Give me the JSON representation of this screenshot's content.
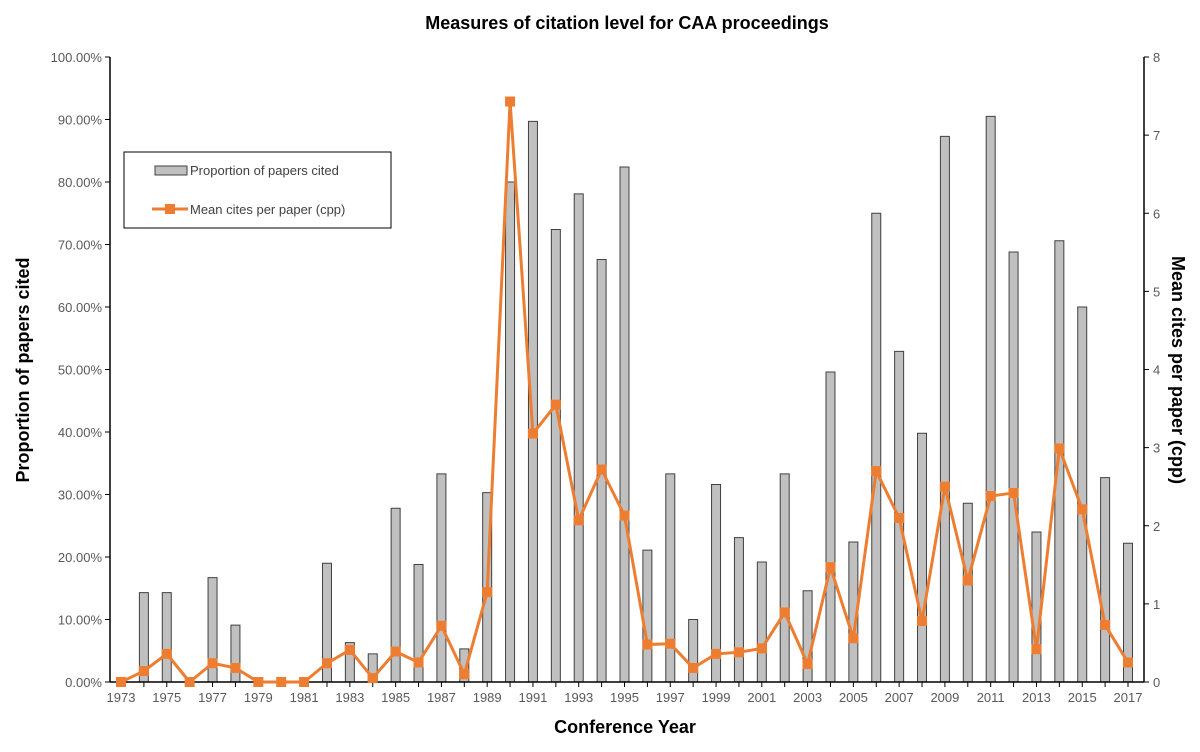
{
  "chart_data": {
    "type": "bar+line",
    "title": "Measures of citation level for CAA proceedings",
    "xlabel": "Conference Year",
    "ylabel": "Proportion of papers cited",
    "y2label": "Mean cites per paper (cpp)",
    "ylim": [
      0,
      100
    ],
    "y2lim": [
      0,
      8
    ],
    "yticks": [
      "0.00%",
      "10.00%",
      "20.00%",
      "30.00%",
      "40.00%",
      "50.00%",
      "60.00%",
      "70.00%",
      "80.00%",
      "90.00%",
      "100.00%"
    ],
    "y2ticks": [
      "0",
      "1",
      "2",
      "3",
      "4",
      "5",
      "6",
      "7",
      "8"
    ],
    "grid": false,
    "legend_position": "top-left",
    "categories": [
      1973,
      1974,
      1975,
      1976,
      1977,
      1978,
      1979,
      1980,
      1981,
      1982,
      1983,
      1984,
      1985,
      1986,
      1987,
      1988,
      1989,
      1990,
      1991,
      1992,
      1993,
      1994,
      1995,
      1996,
      1997,
      1998,
      1999,
      2000,
      2001,
      2002,
      2003,
      2004,
      2005,
      2006,
      2007,
      2008,
      2009,
      2010,
      2011,
      2012,
      2013,
      2014,
      2015,
      2016,
      2017
    ],
    "series": [
      {
        "name": "Proportion of papers cited",
        "type": "bar",
        "axis": "left",
        "color": "#c0c0c0",
        "values": [
          0,
          14.3,
          14.3,
          0,
          16.7,
          9.1,
          0,
          0,
          0,
          19.0,
          6.3,
          4.5,
          27.8,
          18.8,
          33.3,
          5.3,
          30.3,
          80.0,
          89.7,
          72.4,
          78.1,
          67.6,
          82.4,
          21.1,
          33.3,
          10.0,
          31.6,
          23.1,
          19.2,
          33.3,
          14.6,
          49.6,
          22.4,
          75.0,
          52.9,
          39.8,
          87.3,
          28.6,
          90.5,
          68.8,
          24.0,
          70.6,
          60.0,
          32.7,
          22.2
        ]
      },
      {
        "name": "Mean cites per paper (cpp)",
        "type": "line",
        "axis": "right",
        "color": "#ed7d31",
        "values": [
          0,
          0.14,
          0.36,
          0,
          0.24,
          0.18,
          0,
          0,
          0,
          0.24,
          0.41,
          0.05,
          0.39,
          0.25,
          0.72,
          0.1,
          1.15,
          7.43,
          3.18,
          3.55,
          2.07,
          2.72,
          2.13,
          0.48,
          0.49,
          0.18,
          0.36,
          0.38,
          0.43,
          0.89,
          0.23,
          1.47,
          0.56,
          2.7,
          2.1,
          0.78,
          2.5,
          1.3,
          2.38,
          2.42,
          0.42,
          2.99,
          2.21,
          0.73,
          0.25
        ]
      }
    ]
  }
}
